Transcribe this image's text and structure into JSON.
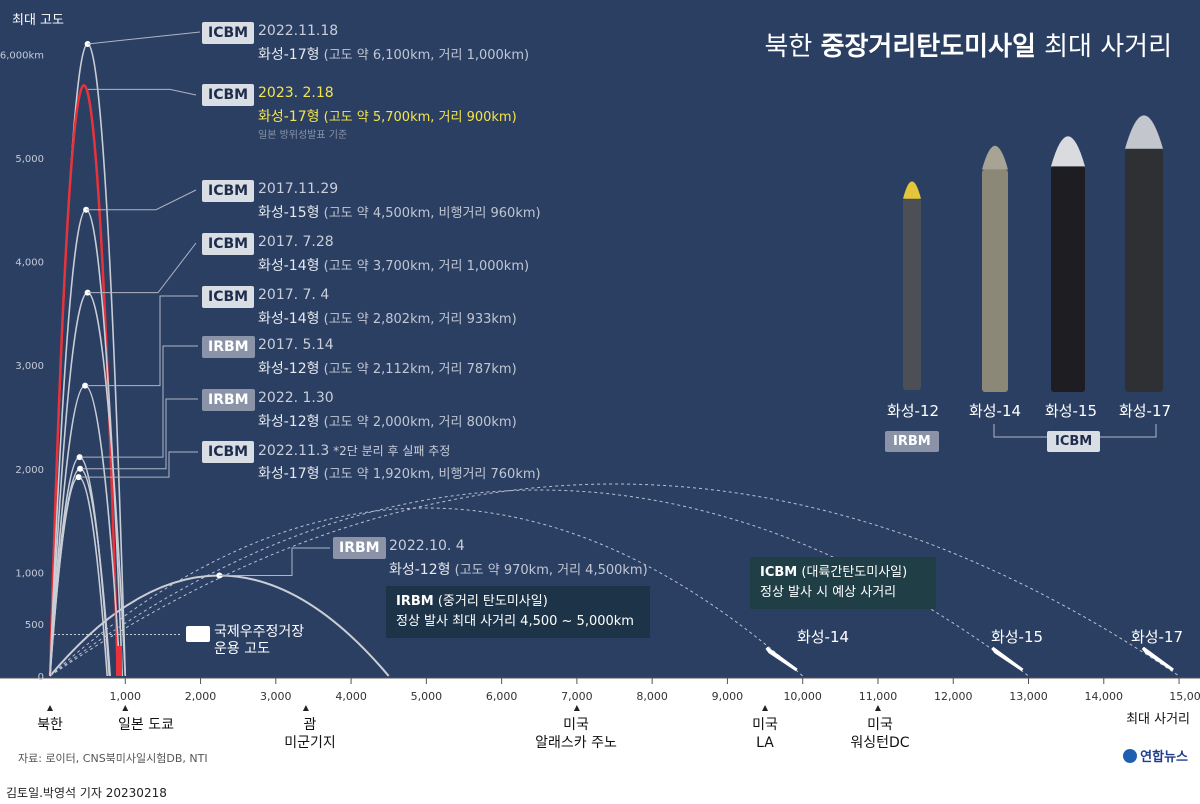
{
  "title": {
    "part1": "북한 ",
    "bold": "중장거리탄도미사일",
    "part2": " 최대 사거리"
  },
  "y_axis_title": "최대 고도",
  "x_axis_title": "최대 사거리",
  "source": "자료: 로이터, CNS북미사일시험DB, NTI",
  "credit": "김토일.박영석 기자  20230218",
  "logo": "연합뉴스",
  "colors": {
    "background": "#2b3f63",
    "highlight": "#e8333a",
    "highlight_text": "#f4e54a",
    "arc": "#c9cdd5"
  },
  "launches": [
    {
      "badge": "ICBM",
      "date": "2022.11.18",
      "type": "화성-17형",
      "detail": " (고도 약 6,100km, 거리 1,000km)"
    },
    {
      "badge": "ICBM",
      "date": "2023. 2.18",
      "type": "화성-17형",
      "detail": " (고도 약 5,700km, 거리 900km)",
      "note": "일본 방위성발표 기준"
    },
    {
      "badge": "ICBM",
      "date": "2017.11.29",
      "type": "화성-15형",
      "detail": " (고도 약 4,500km, 비행거리 960km)"
    },
    {
      "badge": "ICBM",
      "date": "2017. 7.28",
      "type": "화성-14형",
      "detail": " (고도 약 3,700km, 거리 1,000km)"
    },
    {
      "badge": "ICBM",
      "date": "2017. 7. 4",
      "type": "화성-14형",
      "detail": " (고도 약 2,802km, 거리 933km)"
    },
    {
      "badge": "IRBM",
      "date": "2017. 5.14",
      "type": "화성-12형",
      "detail": " (고도 약 2,112km, 거리 787km)"
    },
    {
      "badge": "IRBM",
      "date": "2022. 1.30",
      "type": "화성-12형",
      "detail": " (고도 약 2,000km, 거리 800km)"
    },
    {
      "badge": "ICBM",
      "date": "2022.11.3",
      "date_note": " *2단 분리 후 실패 추정",
      "type": "화성-17형",
      "detail": " (고도 약 1,920km, 비행거리 760km)"
    },
    {
      "badge": "IRBM",
      "date": "2022.10. 4",
      "type": "화성-12형",
      "detail": " (고도 약 970km, 거리 4,500km)"
    }
  ],
  "missiles": [
    "화성-12",
    "화성-14",
    "화성-15",
    "화성-17"
  ],
  "category_badges": {
    "irbm": "IRBM",
    "icbm": "ICBM"
  },
  "irbm_box": {
    "title": "IRBM",
    "title_sub": "(중거리 탄도미사일)",
    "line2": "정상 발사 최대 사거리 4,500 ~ 5,000km"
  },
  "icbm_box": {
    "title": "ICBM",
    "title_sub": "(대륙간탄도미사일)",
    "line2": "정상 발사 시 예상 사거리"
  },
  "range_labels": [
    "화성-14",
    "화성-15",
    "화성-17"
  ],
  "iss_label": {
    "line1": "국제우주정거장",
    "line2": "운용 고도"
  },
  "x_locations": [
    {
      "name": "북한",
      "name2": ""
    },
    {
      "name": "일본 도쿄",
      "name2": ""
    },
    {
      "name": "괌",
      "name2": "미군기지"
    },
    {
      "name": "미국",
      "name2": "알래스카 주노"
    },
    {
      "name": "미국",
      "name2": "LA"
    },
    {
      "name": "미국",
      "name2": "워싱턴DC"
    }
  ],
  "chart_data": {
    "type": "line",
    "title": "북한 중장거리탄도미사일 최대 사거리",
    "ylabel": "최대 고도",
    "xlabel": "최대 사거리",
    "ylim": [
      0,
      6000
    ],
    "xlim": [
      0,
      15000
    ],
    "y_ticks": [
      "0",
      "500",
      "1,000",
      "2,000",
      "3,000",
      "4,000",
      "5,000",
      "6,000km"
    ],
    "x_ticks": [
      "1,000",
      "2,000",
      "3,000",
      "4,000",
      "5,000",
      "6,000",
      "7,000",
      "8,000",
      "9,000",
      "10,000",
      "11,000",
      "12,000",
      "13,000",
      "14,000",
      "15,000km"
    ],
    "series": [
      {
        "name": "2022.11.18 화성-17형",
        "range_km": 1000,
        "apogee_km": 6100
      },
      {
        "name": "2023. 2.18 화성-17형",
        "range_km": 900,
        "apogee_km": 5700
      },
      {
        "name": "2017.11.29 화성-15형",
        "range_km": 960,
        "apogee_km": 4500
      },
      {
        "name": "2017. 7.28 화성-14형",
        "range_km": 1000,
        "apogee_km": 3700
      },
      {
        "name": "2017. 7. 4 화성-14형",
        "range_km": 933,
        "apogee_km": 2802
      },
      {
        "name": "2017. 5.14 화성-12형",
        "range_km": 787,
        "apogee_km": 2112
      },
      {
        "name": "2022. 1.30 화성-12형",
        "range_km": 800,
        "apogee_km": 2000
      },
      {
        "name": "2022.11.3 화성-17형",
        "range_km": 760,
        "apogee_km": 1920
      },
      {
        "name": "2022.10. 4 화성-12형",
        "range_km": 4500,
        "apogee_km": 970
      }
    ],
    "iss_altitude_km": 400,
    "estimated_ranges_km": {
      "화성-14": 10000,
      "화성-15": 13000,
      "화성-17": 15000
    },
    "locations_km": {
      "북한": 0,
      "일본 도쿄": 1000,
      "괌 미군기지": 3400,
      "미국 알래스카 주노": 7000,
      "미국 LA": 9500,
      "미국 워싱턴DC": 11000
    }
  }
}
